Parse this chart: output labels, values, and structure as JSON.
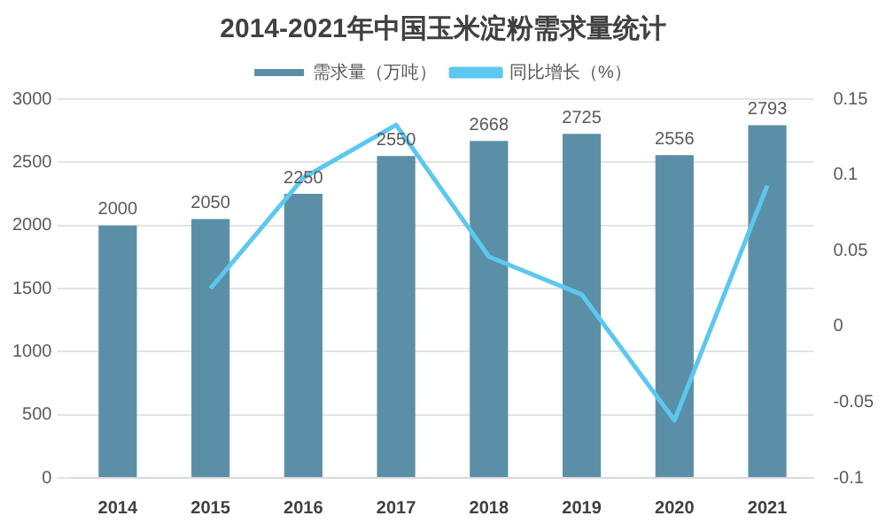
{
  "chart_data": {
    "type": "bar",
    "title": "2014-2021年中国玉米淀粉需求量统计",
    "categories": [
      "2014",
      "2015",
      "2016",
      "2017",
      "2018",
      "2019",
      "2020",
      "2021"
    ],
    "series": [
      {
        "name": "需求量（万吨）",
        "color": "#5b8fa8",
        "values": [
          2000,
          2050,
          2250,
          2550,
          2668,
          2725,
          2556,
          2793
        ],
        "value_labels": [
          "2000",
          "2050",
          "2250",
          "2550",
          "2668",
          "2725",
          "2556",
          "2793"
        ]
      },
      {
        "name": "同比增长（%）",
        "type": "line",
        "axis": "y2",
        "color": "#5bc8f0",
        "values": [
          null,
          0.025,
          0.098,
          0.133,
          0.046,
          0.021,
          -0.062,
          0.093
        ]
      }
    ],
    "ylim": [
      0,
      3000
    ],
    "yticks": [
      0,
      500,
      1000,
      1500,
      2000,
      2500,
      3000
    ],
    "y2lim": [
      -0.1,
      0.15
    ],
    "y2ticks": [
      -0.1,
      -0.05,
      0,
      0.05,
      0.1,
      0.15
    ],
    "grid": "y",
    "legend": "top",
    "marker": "none"
  }
}
